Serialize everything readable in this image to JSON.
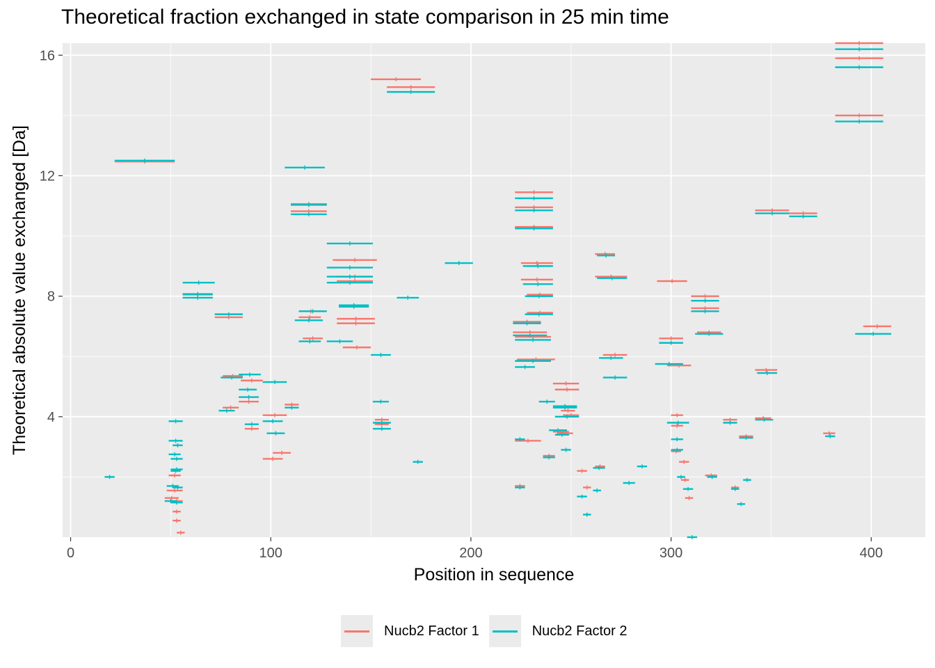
{
  "chart_data": {
    "type": "scatter",
    "title": "Theoretical fraction exchanged in state comparison in 25 min time",
    "xlabel": "Position in sequence",
    "ylabel": "Theoretical absolute value exchanged [Da]",
    "xlim": [
      -4,
      427
    ],
    "ylim": [
      0,
      16.4
    ],
    "xticks": [
      0,
      100,
      200,
      300,
      400
    ],
    "yticks": [
      4,
      8,
      12,
      16
    ],
    "grid": true,
    "legend_position": "bottom",
    "series": [
      {
        "name": "Nucb2 Factor 1",
        "color": "#F8766D",
        "segments": [
          [
            22,
            52,
            12.47
          ],
          [
            158,
            182,
            14.94
          ],
          [
            110,
            128,
            10.82
          ],
          [
            110,
            128,
            11.06
          ],
          [
            150,
            175,
            15.2
          ],
          [
            131,
            153,
            9.2
          ],
          [
            133,
            151,
            8.65
          ],
          [
            133,
            151,
            8.5
          ],
          [
            133,
            152,
            7.25
          ],
          [
            133,
            152,
            7.1
          ],
          [
            136,
            150,
            6.3
          ],
          [
            114,
            125,
            7.3
          ],
          [
            116,
            126,
            6.6
          ],
          [
            114,
            126,
            7.5
          ],
          [
            56,
            71,
            7.95
          ],
          [
            56,
            71,
            8.05
          ],
          [
            72,
            86,
            7.3
          ],
          [
            76,
            84,
            4.3
          ],
          [
            76,
            86,
            5.35
          ],
          [
            85,
            96,
            5.2
          ],
          [
            84,
            94,
            4.5
          ],
          [
            87,
            94,
            3.6
          ],
          [
            96,
            108,
            4.05
          ],
          [
            96,
            106,
            2.6
          ],
          [
            101,
            110,
            2.8
          ],
          [
            107,
            114,
            4.4
          ],
          [
            152,
            159,
            3.9
          ],
          [
            152,
            159,
            3.75
          ],
          [
            221,
            235,
            7.15
          ],
          [
            221,
            238,
            6.8
          ],
          [
            222,
            240,
            6.65
          ],
          [
            223,
            242,
            5.9
          ],
          [
            222,
            235,
            3.2
          ],
          [
            222,
            227,
            1.7
          ],
          [
            222,
            241,
            11.45
          ],
          [
            222,
            241,
            10.95
          ],
          [
            222,
            241,
            10.3
          ],
          [
            225,
            241,
            9.1
          ],
          [
            225,
            241,
            8.55
          ],
          [
            228,
            241,
            8.05
          ],
          [
            228,
            241,
            7.45
          ],
          [
            236,
            242,
            2.7
          ],
          [
            241,
            249,
            3.5
          ],
          [
            243,
            251,
            3.45
          ],
          [
            241,
            254,
            5.1
          ],
          [
            242,
            254,
            4.9
          ],
          [
            246,
            254,
            4.05
          ],
          [
            253,
            258,
            2.2
          ],
          [
            256,
            260,
            1.65
          ],
          [
            262,
            267,
            2.35
          ],
          [
            262,
            272,
            9.4
          ],
          [
            262,
            278,
            8.65
          ],
          [
            266,
            278,
            6.05
          ],
          [
            245,
            252,
            4.2
          ],
          [
            293,
            308,
            8.5
          ],
          [
            294,
            306,
            6.6
          ],
          [
            298,
            310,
            5.7
          ],
          [
            300,
            306,
            4.05
          ],
          [
            300,
            306,
            3.7
          ],
          [
            300,
            305,
            2.85
          ],
          [
            304,
            309,
            2.5
          ],
          [
            305,
            309,
            1.9
          ],
          [
            307,
            311,
            1.3
          ],
          [
            310,
            324,
            8.0
          ],
          [
            310,
            324,
            7.6
          ],
          [
            313,
            325,
            6.8
          ],
          [
            317,
            323,
            2.05
          ],
          [
            326,
            333,
            3.9
          ],
          [
            330,
            334,
            1.65
          ],
          [
            334,
            341,
            3.35
          ],
          [
            342,
            353,
            5.55
          ],
          [
            342,
            350,
            3.95
          ],
          [
            342,
            359,
            10.85
          ],
          [
            359,
            373,
            10.75
          ],
          [
            376,
            382,
            3.45
          ],
          [
            382,
            406,
            16.4
          ],
          [
            382,
            406,
            15.9
          ],
          [
            382,
            406,
            14.0
          ],
          [
            396,
            410,
            7.0
          ],
          [
            49,
            55,
            2.05
          ],
          [
            48,
            56,
            1.55
          ],
          [
            47,
            54,
            1.3
          ],
          [
            50,
            56,
            1.2
          ],
          [
            51,
            55,
            0.85
          ],
          [
            51,
            55,
            0.55
          ],
          [
            53,
            57,
            0.15
          ]
        ]
      },
      {
        "name": "Nucb2 Factor 2",
        "color": "#00BFC4",
        "segments": [
          [
            17,
            22,
            2.0
          ],
          [
            22,
            52,
            12.5
          ],
          [
            158,
            182,
            14.78
          ],
          [
            107,
            127,
            12.27
          ],
          [
            110,
            128,
            11.03
          ],
          [
            110,
            128,
            10.72
          ],
          [
            128,
            151,
            9.75
          ],
          [
            128,
            151,
            8.95
          ],
          [
            128,
            151,
            8.65
          ],
          [
            128,
            151,
            8.45
          ],
          [
            134,
            149,
            7.65
          ],
          [
            134,
            149,
            7.7
          ],
          [
            128,
            141,
            6.5
          ],
          [
            150,
            160,
            6.05
          ],
          [
            112,
            126,
            7.2
          ],
          [
            114,
            125,
            6.5
          ],
          [
            114,
            128,
            7.5
          ],
          [
            56,
            71,
            8.07
          ],
          [
            56,
            71,
            7.95
          ],
          [
            56,
            72,
            8.45
          ],
          [
            72,
            86,
            7.4
          ],
          [
            74,
            82,
            4.2
          ],
          [
            75,
            86,
            5.3
          ],
          [
            84,
            95,
            5.4
          ],
          [
            84,
            93,
            4.9
          ],
          [
            84,
            94,
            4.65
          ],
          [
            87,
            94,
            3.75
          ],
          [
            96,
            108,
            5.15
          ],
          [
            96,
            106,
            3.85
          ],
          [
            98,
            107,
            3.45
          ],
          [
            107,
            114,
            4.3
          ],
          [
            151,
            159,
            4.5
          ],
          [
            151,
            160,
            3.8
          ],
          [
            151,
            160,
            3.6
          ],
          [
            163,
            174,
            7.95
          ],
          [
            171,
            176,
            2.5
          ],
          [
            187,
            201,
            9.1
          ],
          [
            221,
            235,
            7.1
          ],
          [
            221,
            238,
            6.7
          ],
          [
            222,
            240,
            6.55
          ],
          [
            222,
            240,
            5.85
          ],
          [
            222,
            232,
            5.65
          ],
          [
            222,
            227,
            3.25
          ],
          [
            222,
            227,
            1.65
          ],
          [
            222,
            241,
            11.25
          ],
          [
            222,
            241,
            10.85
          ],
          [
            222,
            241,
            10.25
          ],
          [
            226,
            241,
            9.0
          ],
          [
            226,
            241,
            8.4
          ],
          [
            227,
            241,
            8.0
          ],
          [
            227,
            241,
            7.4
          ],
          [
            234,
            242,
            4.5
          ],
          [
            236,
            242,
            2.65
          ],
          [
            239,
            248,
            3.55
          ],
          [
            245,
            250,
            2.9
          ],
          [
            241,
            253,
            4.35
          ],
          [
            241,
            253,
            4.3
          ],
          [
            242,
            254,
            4.0
          ],
          [
            242,
            249,
            3.4
          ],
          [
            253,
            258,
            1.35
          ],
          [
            256,
            260,
            0.75
          ],
          [
            261,
            267,
            2.3
          ],
          [
            261,
            265,
            1.55
          ],
          [
            263,
            272,
            9.35
          ],
          [
            263,
            278,
            8.6
          ],
          [
            264,
            276,
            5.95
          ],
          [
            266,
            278,
            5.3
          ],
          [
            276,
            282,
            1.8
          ],
          [
            283,
            288,
            2.35
          ],
          [
            292,
            306,
            5.75
          ],
          [
            294,
            306,
            6.45
          ],
          [
            298,
            309,
            3.8
          ],
          [
            300,
            306,
            3.25
          ],
          [
            300,
            306,
            2.9
          ],
          [
            303,
            307,
            2.0
          ],
          [
            306,
            311,
            1.6
          ],
          [
            308,
            313,
            0.0
          ],
          [
            310,
            324,
            7.85
          ],
          [
            310,
            324,
            7.5
          ],
          [
            312,
            326,
            6.75
          ],
          [
            318,
            323,
            2.0
          ],
          [
            326,
            333,
            3.8
          ],
          [
            330,
            334,
            1.6
          ],
          [
            334,
            341,
            3.3
          ],
          [
            333,
            337,
            1.1
          ],
          [
            336,
            340,
            1.9
          ],
          [
            343,
            353,
            5.45
          ],
          [
            342,
            351,
            3.9
          ],
          [
            342,
            359,
            10.75
          ],
          [
            359,
            373,
            10.65
          ],
          [
            377,
            382,
            3.35
          ],
          [
            382,
            406,
            16.2
          ],
          [
            382,
            406,
            15.6
          ],
          [
            382,
            406,
            13.8
          ],
          [
            392,
            410,
            6.75
          ],
          [
            49,
            56,
            3.85
          ],
          [
            49,
            56,
            3.2
          ],
          [
            51,
            56,
            3.05
          ],
          [
            49,
            55,
            2.75
          ],
          [
            50,
            56,
            2.6
          ],
          [
            50,
            56,
            2.25
          ],
          [
            50,
            55,
            2.2
          ],
          [
            48,
            54,
            1.7
          ],
          [
            51,
            56,
            1.65
          ],
          [
            47,
            53,
            1.2
          ],
          [
            50,
            56,
            1.15
          ]
        ]
      }
    ]
  }
}
